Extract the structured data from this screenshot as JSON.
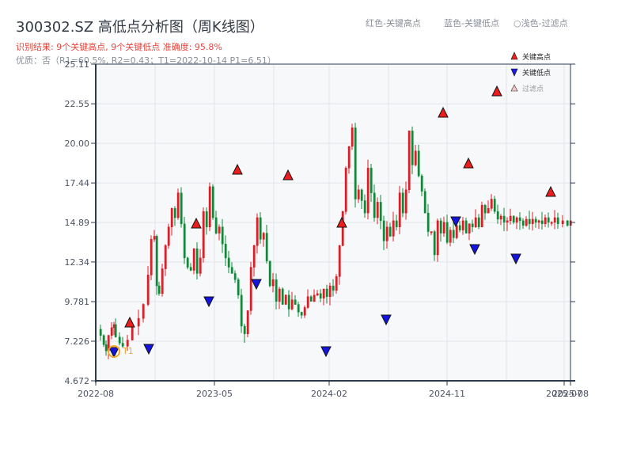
{
  "header": {
    "title": "300302.SZ 高低点分析图（周K线图）",
    "result_line": "识别结果: 9个关键高点, 9个关键低点  准确度: 95.8%",
    "quality_line": "优质：否（R1=60.5%, R2=0.43；T1=2022-10-14 P1=6.51）",
    "notes": [
      "红色-关键高点",
      "蓝色-关键低点",
      "○浅色-过滤点"
    ]
  },
  "legend": {
    "items": [
      {
        "label": "关键高点",
        "marker": "triangle-up",
        "color": "#e8201e"
      },
      {
        "label": "关键低点",
        "marker": "triangle-down",
        "color": "#1a1ae6"
      },
      {
        "label": "过滤点",
        "marker": "triangle-up-hollow",
        "color": "#f4c6c6"
      }
    ]
  },
  "colors": {
    "up": "#e0202a",
    "down": "#12873a",
    "high_marker": "#ee1c1c",
    "low_marker": "#1414e0",
    "t1_circle": "#f5a623",
    "axis": "#2c3a4c",
    "grid": "#e1e4ea",
    "plot_bg": "#f6f8fa"
  },
  "annotation": {
    "label": "T1",
    "date": "2022-10-14",
    "price": 6.51
  },
  "chart_data": {
    "type": "candlestick",
    "title": "300302.SZ 高低点分析图（周K线图）",
    "xlabel": "",
    "ylabel": "",
    "ylim": [
      4.672,
      25.11
    ],
    "yticks": [
      "4.672",
      "7.226",
      "9.781",
      "12.34",
      "14.89",
      "17.44",
      "20.00",
      "22.55",
      "25.11"
    ],
    "xticks": [
      "2022-08",
      "2023-05",
      "2024-02",
      "2024-11",
      "2025-07",
      "2025-08"
    ],
    "grid": true,
    "legend_position": "upper right",
    "key_highs": [
      {
        "date": "2022-11",
        "price": 8.4
      },
      {
        "date": "2023-04",
        "price": 14.8
      },
      {
        "date": "2023-07",
        "price": 18.3
      },
      {
        "date": "2023-11",
        "price": 17.9
      },
      {
        "date": "2024-03",
        "price": 14.8
      },
      {
        "date": "2024-11",
        "price": 22.0
      },
      {
        "date": "2025-01",
        "price": 18.7
      },
      {
        "date": "2025-03",
        "price": 23.3
      },
      {
        "date": "2025-07",
        "price": 16.8
      }
    ],
    "key_lows": [
      {
        "date": "2022-10",
        "price": 6.51
      },
      {
        "date": "2022-12",
        "price": 6.7
      },
      {
        "date": "2023-05",
        "price": 9.8
      },
      {
        "date": "2023-09",
        "price": 10.9
      },
      {
        "date": "2024-02",
        "price": 6.6
      },
      {
        "date": "2024-07",
        "price": 8.6
      },
      {
        "date": "2024-12",
        "price": 15.0
      },
      {
        "date": "2025-02",
        "price": 13.2
      },
      {
        "date": "2025-04",
        "price": 12.6
      }
    ],
    "close_path_approx": [
      [
        0,
        8.0
      ],
      [
        6,
        7.6
      ],
      [
        10,
        7.0
      ],
      [
        13,
        6.6
      ],
      [
        16,
        7.6
      ],
      [
        20,
        8.1
      ],
      [
        23,
        8.3
      ],
      [
        25,
        7.5
      ],
      [
        30,
        7.1
      ],
      [
        34,
        6.9
      ],
      [
        40,
        7.3
      ],
      [
        46,
        8.2
      ],
      [
        54,
        8.7
      ],
      [
        60,
        9.6
      ],
      [
        66,
        11.5
      ],
      [
        70,
        13.8
      ],
      [
        74,
        14.0
      ],
      [
        77,
        10.8
      ],
      [
        80,
        10.3
      ],
      [
        84,
        11.9
      ],
      [
        88,
        13.4
      ],
      [
        92,
        14.6
      ],
      [
        96,
        15.8
      ],
      [
        100,
        15.2
      ],
      [
        104,
        16.8
      ],
      [
        108,
        14.8
      ],
      [
        112,
        12.6
      ],
      [
        116,
        12.0
      ],
      [
        120,
        11.8
      ],
      [
        124,
        13.2
      ],
      [
        128,
        11.6
      ],
      [
        132,
        12.6
      ],
      [
        136,
        15.6
      ],
      [
        140,
        14.6
      ],
      [
        144,
        17.2
      ],
      [
        148,
        15.2
      ],
      [
        152,
        14.2
      ],
      [
        156,
        14.6
      ],
      [
        160,
        13.5
      ],
      [
        164,
        12.6
      ],
      [
        168,
        12.0
      ],
      [
        172,
        11.6
      ],
      [
        176,
        11.2
      ],
      [
        180,
        10.2
      ],
      [
        184,
        8.2
      ],
      [
        188,
        7.7
      ],
      [
        192,
        9.2
      ],
      [
        196,
        12.0
      ],
      [
        200,
        13.4
      ],
      [
        204,
        15.2
      ],
      [
        208,
        13.8
      ],
      [
        212,
        14.2
      ],
      [
        216,
        12.4
      ],
      [
        220,
        10.8
      ],
      [
        224,
        11.2
      ],
      [
        228,
        9.8
      ],
      [
        232,
        10.6
      ],
      [
        236,
        9.6
      ],
      [
        240,
        10.2
      ],
      [
        244,
        9.3
      ],
      [
        248,
        9.9
      ],
      [
        252,
        9.6
      ],
      [
        256,
        9.1
      ],
      [
        260,
        8.9
      ],
      [
        264,
        9.4
      ],
      [
        268,
        10.1
      ],
      [
        272,
        9.8
      ],
      [
        276,
        10.2
      ],
      [
        280,
        10.3
      ],
      [
        284,
        10.0
      ],
      [
        288,
        10.6
      ],
      [
        292,
        10.1
      ],
      [
        296,
        10.8
      ],
      [
        300,
        10.5
      ],
      [
        304,
        11.4
      ],
      [
        308,
        13.4
      ],
      [
        312,
        15.6
      ],
      [
        316,
        18.4
      ],
      [
        320,
        19.8
      ],
      [
        324,
        21.0
      ],
      [
        328,
        16.4
      ],
      [
        332,
        17.0
      ],
      [
        336,
        16.3
      ],
      [
        340,
        15.5
      ],
      [
        344,
        18.4
      ],
      [
        348,
        16.8
      ],
      [
        352,
        15.2
      ],
      [
        356,
        16.2
      ],
      [
        360,
        15.0
      ],
      [
        364,
        13.7
      ],
      [
        368,
        14.6
      ],
      [
        372,
        14.0
      ],
      [
        376,
        15.0
      ],
      [
        380,
        14.6
      ],
      [
        384,
        16.8
      ],
      [
        388,
        15.5
      ],
      [
        392,
        17.0
      ],
      [
        396,
        20.8
      ],
      [
        400,
        18.6
      ],
      [
        404,
        19.5
      ],
      [
        408,
        17.9
      ],
      [
        412,
        16.9
      ],
      [
        416,
        15.5
      ],
      [
        420,
        14.3
      ],
      [
        424,
        14.3
      ],
      [
        428,
        12.8
      ],
      [
        432,
        15.0
      ],
      [
        436,
        14.2
      ],
      [
        440,
        14.9
      ],
      [
        444,
        13.6
      ],
      [
        448,
        14.4
      ],
      [
        452,
        13.9
      ],
      [
        456,
        14.7
      ],
      [
        460,
        14.4
      ],
      [
        464,
        15.0
      ],
      [
        468,
        14.2
      ],
      [
        472,
        14.8
      ],
      [
        476,
        14.6
      ],
      [
        480,
        15.2
      ],
      [
        484,
        14.6
      ],
      [
        488,
        16.0
      ],
      [
        492,
        15.5
      ],
      [
        496,
        15.8
      ],
      [
        500,
        16.4
      ],
      [
        504,
        15.6
      ],
      [
        508,
        15.1
      ],
      [
        512,
        15.3
      ],
      [
        516,
        14.9
      ],
      [
        520,
        15.0
      ],
      [
        524,
        15.3
      ],
      [
        528,
        14.9
      ],
      [
        532,
        15.2
      ],
      [
        536,
        15.0
      ],
      [
        540,
        14.7
      ],
      [
        544,
        15.1
      ],
      [
        548,
        14.8
      ],
      [
        552,
        15.1
      ],
      [
        556,
        14.9
      ],
      [
        560,
        15.0
      ],
      [
        564,
        14.8
      ],
      [
        568,
        15.2
      ],
      [
        572,
        14.9
      ],
      [
        576,
        14.9
      ],
      [
        580,
        15.2
      ],
      [
        584,
        14.8
      ],
      [
        590,
        15.0
      ],
      [
        596,
        14.7
      ],
      [
        600,
        15.0
      ]
    ]
  }
}
